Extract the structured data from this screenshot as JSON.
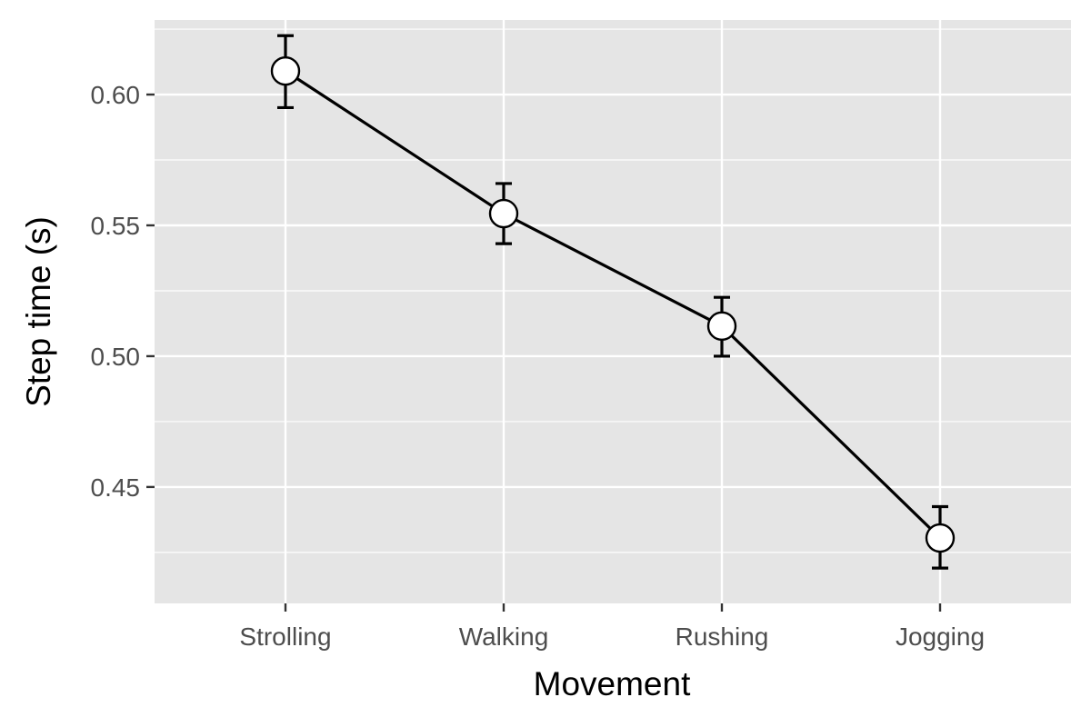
{
  "chart_data": {
    "type": "line",
    "xlabel": "Movement",
    "ylabel": "Step time (s)",
    "categories": [
      "Strolling",
      "Walking",
      "Rushing",
      "Jogging"
    ],
    "series": [
      {
        "values": [
          0.609,
          0.5545,
          0.5115,
          0.4305
        ],
        "error_lower": [
          0.595,
          0.543,
          0.5,
          0.419
        ],
        "error_upper": [
          0.6225,
          0.566,
          0.5225,
          0.4425
        ]
      }
    ],
    "ylim": [
      0.4055,
      0.6285
    ],
    "yticks": [
      0.45,
      0.5,
      0.55,
      0.6
    ],
    "ytick_labels": [
      "0.45",
      "0.50",
      "0.55",
      "0.60"
    ],
    "grid": true,
    "legend": "none",
    "colors": {
      "panel": "#e5e5e5",
      "grid": "#ffffff",
      "line": "#000000",
      "marker_fill": "#ffffff",
      "tick_text": "#4d4d4d"
    }
  }
}
